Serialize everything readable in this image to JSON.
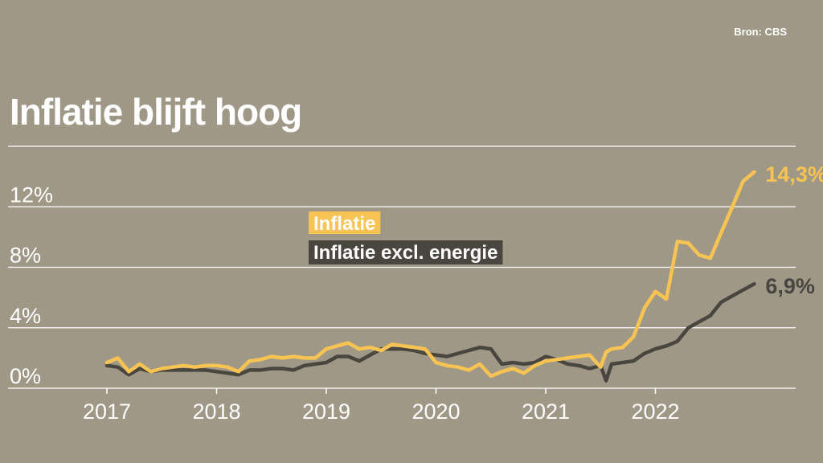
{
  "source": "Bron: CBS",
  "title": "Inflatie blijft hoog",
  "colors": {
    "background": "#9f9886",
    "inflation": "#f7c453",
    "core": "#48463f",
    "grid": "#ffffff"
  },
  "chart_data": {
    "type": "line",
    "title": "Inflatie blijft hoog",
    "xlabel": "",
    "ylabel": "",
    "ylim": [
      0,
      16
    ],
    "xlim": [
      2017,
      2023.05
    ],
    "y_ticks": [
      0,
      4,
      8,
      12
    ],
    "y_tick_labels": [
      "0%",
      "4%",
      "8%",
      "12%"
    ],
    "x_ticks": [
      2017,
      2018,
      2019,
      2020,
      2021,
      2022
    ],
    "x_tick_labels": [
      "2017",
      "2018",
      "2019",
      "2020",
      "2021",
      "2022"
    ],
    "grid": true,
    "legend": "center-left",
    "series": [
      {
        "name": "Inflatie",
        "color": "#f7c453",
        "end_label": "14,3%",
        "x": [
          2017.0,
          2017.1,
          2017.2,
          2017.3,
          2017.4,
          2017.5,
          2017.6,
          2017.7,
          2017.8,
          2017.9,
          2018.0,
          2018.1,
          2018.2,
          2018.3,
          2018.4,
          2018.5,
          2018.6,
          2018.7,
          2018.8,
          2018.9,
          2019.0,
          2019.1,
          2019.2,
          2019.3,
          2019.4,
          2019.5,
          2019.6,
          2019.7,
          2019.8,
          2019.9,
          2020.0,
          2020.1,
          2020.2,
          2020.3,
          2020.4,
          2020.5,
          2020.6,
          2020.7,
          2020.8,
          2020.9,
          2021.0,
          2021.1,
          2021.2,
          2021.3,
          2021.4,
          2021.5,
          2021.55,
          2021.6,
          2021.7,
          2021.8,
          2021.9,
          2022.0,
          2022.1,
          2022.2,
          2022.3,
          2022.4,
          2022.5,
          2022.6,
          2022.7,
          2022.8,
          2022.9
        ],
        "y": [
          1.7,
          2.0,
          1.1,
          1.6,
          1.1,
          1.3,
          1.4,
          1.5,
          1.4,
          1.5,
          1.5,
          1.4,
          1.1,
          1.8,
          1.9,
          2.1,
          2.0,
          2.1,
          2.0,
          2.0,
          2.6,
          2.8,
          3.0,
          2.6,
          2.7,
          2.5,
          2.9,
          2.8,
          2.7,
          2.6,
          1.7,
          1.5,
          1.4,
          1.2,
          1.6,
          0.8,
          1.1,
          1.3,
          1.0,
          1.5,
          1.8,
          1.9,
          2.0,
          2.1,
          2.2,
          1.4,
          2.4,
          2.6,
          2.7,
          3.4,
          5.3,
          6.4,
          5.9,
          9.7,
          9.6,
          8.8,
          8.6,
          10.3,
          12.0,
          13.7,
          14.3
        ]
      },
      {
        "name": "Inflatie excl. energie",
        "color": "#48463f",
        "end_label": "6,9%",
        "x": [
          2017.0,
          2017.1,
          2017.2,
          2017.3,
          2017.4,
          2017.5,
          2017.6,
          2017.7,
          2017.8,
          2017.9,
          2018.0,
          2018.1,
          2018.2,
          2018.3,
          2018.4,
          2018.5,
          2018.6,
          2018.7,
          2018.8,
          2018.9,
          2019.0,
          2019.1,
          2019.2,
          2019.3,
          2019.4,
          2019.5,
          2019.6,
          2019.7,
          2019.8,
          2019.9,
          2020.0,
          2020.1,
          2020.2,
          2020.3,
          2020.4,
          2020.5,
          2020.6,
          2020.7,
          2020.8,
          2020.9,
          2021.0,
          2021.1,
          2021.2,
          2021.3,
          2021.4,
          2021.5,
          2021.55,
          2021.6,
          2021.7,
          2021.8,
          2021.9,
          2022.0,
          2022.1,
          2022.2,
          2022.3,
          2022.4,
          2022.5,
          2022.6,
          2022.7,
          2022.8,
          2022.9
        ],
        "y": [
          1.5,
          1.4,
          0.9,
          1.3,
          1.1,
          1.2,
          1.2,
          1.2,
          1.2,
          1.2,
          1.1,
          1.0,
          0.9,
          1.2,
          1.2,
          1.3,
          1.3,
          1.2,
          1.5,
          1.6,
          1.7,
          2.1,
          2.1,
          1.8,
          2.2,
          2.6,
          2.6,
          2.6,
          2.5,
          2.3,
          2.2,
          2.1,
          2.3,
          2.5,
          2.7,
          2.6,
          1.6,
          1.7,
          1.6,
          1.7,
          2.1,
          1.9,
          1.6,
          1.5,
          1.3,
          1.5,
          0.5,
          1.6,
          1.7,
          1.8,
          2.3,
          2.6,
          2.8,
          3.1,
          4.0,
          4.4,
          4.8,
          5.7,
          6.1,
          6.5,
          6.9
        ]
      }
    ]
  }
}
